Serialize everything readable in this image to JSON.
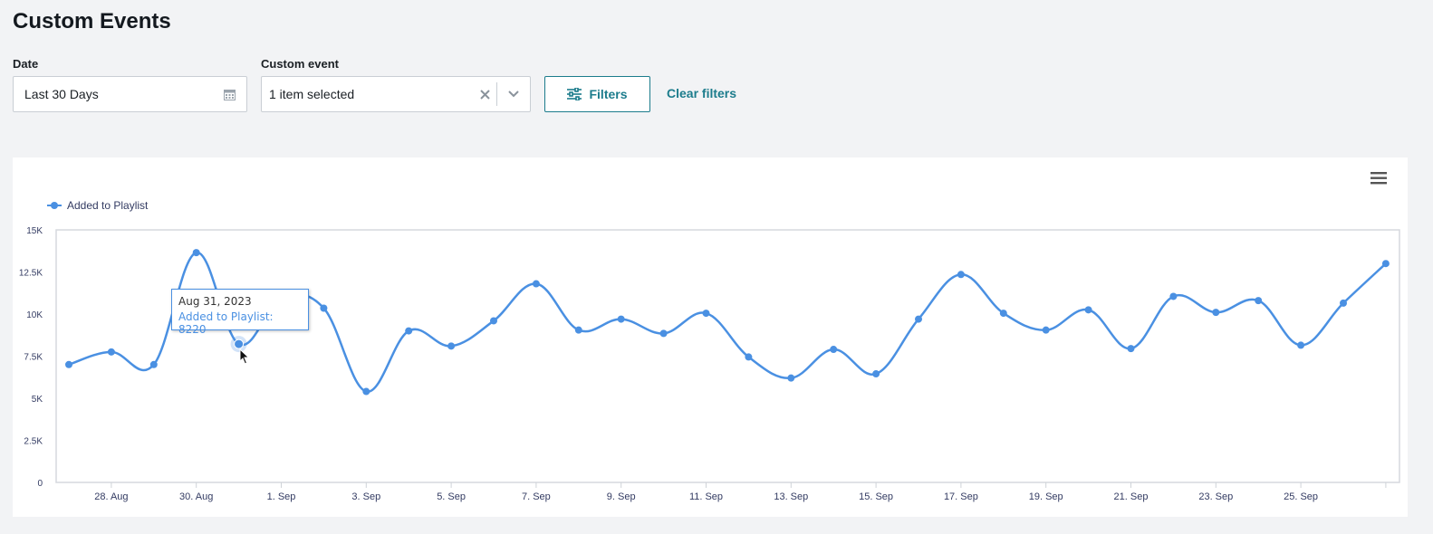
{
  "page": {
    "title": "Custom Events"
  },
  "filters": {
    "date_label": "Date",
    "date_value": "Last 30 Days",
    "event_label": "Custom event",
    "event_value": "1 item selected",
    "filters_button": "Filters",
    "clear_filters": "Clear filters"
  },
  "icons": {
    "calendar": "calendar-icon",
    "clear": "close-icon",
    "dropdown": "chevron-down-icon",
    "filters": "sliders-icon",
    "menu": "hamburger-menu-icon"
  },
  "colors": {
    "accent": "#1c7c8c",
    "series": "#4a90e2"
  },
  "tooltip": {
    "date": "Aug 31, 2023",
    "text": "Added to Playlist: 8220"
  },
  "chart_data": {
    "type": "line",
    "title": "",
    "xlabel": "",
    "ylabel": "",
    "ylim": [
      0,
      15000
    ],
    "yticks": [
      "0",
      "2.5K",
      "5K",
      "7.5K",
      "10K",
      "12.5K",
      "15K"
    ],
    "xtick_labels": [
      "28. Aug",
      "30. Aug",
      "1. Sep",
      "3. Sep",
      "5. Sep",
      "7. Sep",
      "9. Sep",
      "11. Sep",
      "13. Sep",
      "15. Sep",
      "17. Sep",
      "19. Sep",
      "21. Sep",
      "23. Sep",
      "25. Sep"
    ],
    "legend": "top-left",
    "grid": false,
    "series": [
      {
        "name": "Added to Playlist",
        "x": [
          "2023-08-27",
          "2023-08-28",
          "2023-08-29",
          "2023-08-30",
          "2023-08-31",
          "2023-09-01",
          "2023-09-02",
          "2023-09-03",
          "2023-09-04",
          "2023-09-05",
          "2023-09-06",
          "2023-09-07",
          "2023-09-08",
          "2023-09-09",
          "2023-09-10",
          "2023-09-11",
          "2023-09-12",
          "2023-09-13",
          "2023-09-14",
          "2023-09-15",
          "2023-09-16",
          "2023-09-17",
          "2023-09-18",
          "2023-09-19",
          "2023-09-20",
          "2023-09-21",
          "2023-09-22",
          "2023-09-23",
          "2023-09-24",
          "2023-09-25",
          "2023-09-26",
          "2023-09-27"
        ],
        "values": [
          7000,
          7750,
          7000,
          13650,
          8220,
          10900,
          10350,
          5400,
          9000,
          8100,
          9600,
          11800,
          9050,
          9700,
          8850,
          10050,
          7450,
          6200,
          7900,
          6450,
          9700,
          12350,
          10050,
          9050,
          10250,
          7950,
          11050,
          10100,
          10800,
          8150,
          10650,
          13000
        ]
      }
    ],
    "highlighted_point": {
      "x": "2023-08-31",
      "value": 8220
    }
  }
}
